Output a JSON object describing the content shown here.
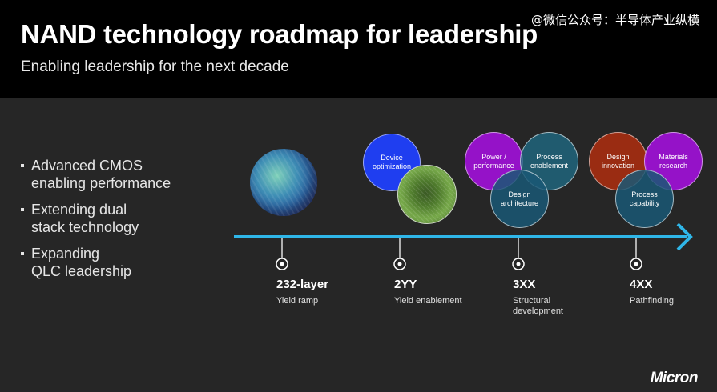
{
  "header": {
    "title": "NAND technology roadmap for leadership",
    "subtitle": "Enabling leadership for the next decade",
    "watermark": "@微信公众号：半导体产业纵横"
  },
  "bullets": [
    {
      "line1": "Advanced CMOS",
      "line2": "enabling performance"
    },
    {
      "line1": "Extending dual",
      "line2": "stack technology"
    },
    {
      "line1": "Expanding",
      "line2": "QLC leadership"
    }
  ],
  "bubbles": {
    "device_optimization": {
      "line1": "Device",
      "line2": "optimization"
    },
    "power_performance": {
      "line1": "Power /",
      "line2": "performance"
    },
    "process_enablement": {
      "line1": "Process",
      "line2": "enablement"
    },
    "design_architecture": {
      "line1": "Design",
      "line2": "architecture"
    },
    "design_innovation": {
      "line1": "Design",
      "line2": "innovation"
    },
    "materials_research": {
      "line1": "Materials",
      "line2": "research"
    },
    "process_capability": {
      "line1": "Process",
      "line2": "capability"
    }
  },
  "milestones": [
    {
      "name": "232-layer",
      "desc1": "Yield ramp",
      "desc2": ""
    },
    {
      "name": "2YY",
      "desc1": "Yield enablement",
      "desc2": ""
    },
    {
      "name": "3XX",
      "desc1": "Structural",
      "desc2": "development"
    },
    {
      "name": "4XX",
      "desc1": "Pathfinding",
      "desc2": ""
    }
  ],
  "logo": "Micron",
  "colors": {
    "arrow": "#2fb6e8",
    "header_bg": "#000000",
    "body_bg": "#262626"
  }
}
